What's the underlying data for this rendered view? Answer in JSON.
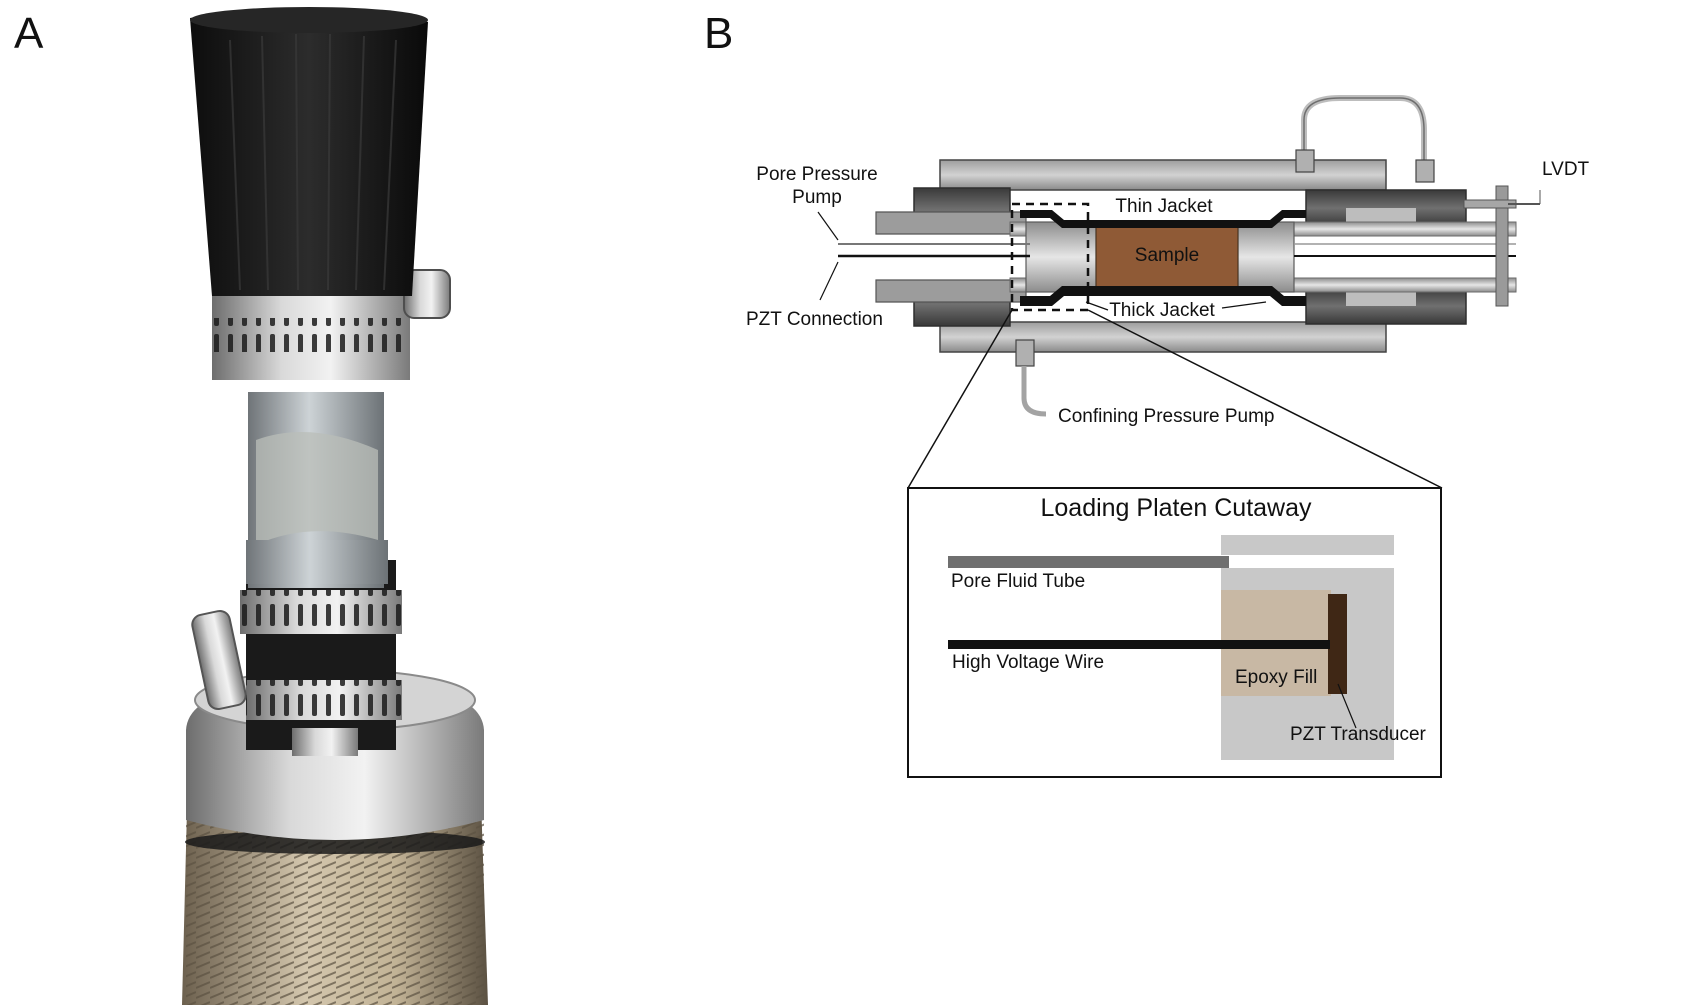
{
  "panels": {
    "a": {
      "letter": "A"
    },
    "b": {
      "letter": "B"
    }
  },
  "labels": {
    "pore_pressure_pump_line1": "Pore Pressure",
    "pore_pressure_pump_line2": "Pump",
    "pzt_connection": "PZT Connection",
    "lvdt": "LVDT",
    "thin_jacket": "Thin Jacket",
    "thick_jacket": "Thick Jacket",
    "sample": "Sample",
    "confining_pressure_pump": "Confining Pressure Pump"
  },
  "inset": {
    "title": "Loading Platen Cutaway",
    "pore_fluid_tube": "Pore Fluid Tube",
    "high_voltage_wire": "High Voltage Wire",
    "epoxy_fill": "Epoxy Fill",
    "pzt_transducer": "PZT Transducer"
  },
  "colors": {
    "sample": "#8f5a36",
    "dark_metal": "#4a4a4a",
    "mid_metal": "#9a9a9a",
    "light_metal": "#c8c8c8",
    "epoxy": "#c8b8a4",
    "transducer": "#3f2715",
    "jacket": "#111111"
  }
}
